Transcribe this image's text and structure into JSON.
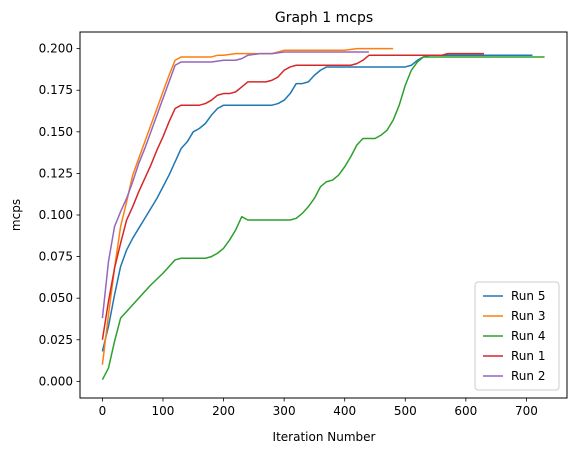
{
  "chart_data": {
    "type": "line",
    "title": "Graph 1 mcps",
    "xlabel": "Iteration Number",
    "ylabel": "mcps",
    "xlim": [
      -37,
      767
    ],
    "ylim": [
      -0.01,
      0.21
    ],
    "xticks": [
      0,
      100,
      200,
      300,
      400,
      500,
      600,
      700
    ],
    "yticks": [
      0.0,
      0.025,
      0.05,
      0.075,
      0.1,
      0.125,
      0.15,
      0.175,
      0.2
    ],
    "ytick_labels": [
      "0.000",
      "0.025",
      "0.050",
      "0.075",
      "0.100",
      "0.125",
      "0.150",
      "0.175",
      "0.200"
    ],
    "grid": false,
    "legend_position": "lower-right",
    "series": [
      {
        "name": "Run 5",
        "color": "#1f77b4",
        "x": [
          0,
          10,
          20,
          30,
          40,
          50,
          60,
          70,
          80,
          90,
          100,
          110,
          120,
          130,
          140,
          150,
          160,
          170,
          180,
          190,
          200,
          210,
          220,
          230,
          240,
          250,
          260,
          270,
          280,
          290,
          300,
          310,
          320,
          330,
          340,
          350,
          360,
          370,
          380,
          390,
          400,
          410,
          420,
          430,
          440,
          450,
          460,
          470,
          480,
          490,
          500,
          510,
          520,
          530,
          540,
          560,
          600,
          650,
          710
        ],
        "y": [
          0.018,
          0.033,
          0.052,
          0.069,
          0.079,
          0.086,
          0.092,
          0.098,
          0.104,
          0.11,
          0.117,
          0.124,
          0.132,
          0.14,
          0.144,
          0.15,
          0.152,
          0.155,
          0.16,
          0.164,
          0.166,
          0.166,
          0.166,
          0.166,
          0.166,
          0.166,
          0.166,
          0.166,
          0.166,
          0.167,
          0.169,
          0.173,
          0.179,
          0.179,
          0.18,
          0.184,
          0.187,
          0.189,
          0.189,
          0.189,
          0.189,
          0.189,
          0.189,
          0.189,
          0.189,
          0.189,
          0.189,
          0.189,
          0.189,
          0.189,
          0.189,
          0.19,
          0.193,
          0.195,
          0.196,
          0.196,
          0.196,
          0.196,
          0.196
        ]
      },
      {
        "name": "Run 3",
        "color": "#ff7f0e",
        "x": [
          0,
          10,
          20,
          30,
          40,
          50,
          60,
          70,
          80,
          90,
          100,
          110,
          120,
          130,
          140,
          150,
          160,
          170,
          180,
          190,
          200,
          220,
          240,
          260,
          280,
          300,
          320,
          340,
          360,
          380,
          400,
          420,
          440,
          460,
          480
        ],
        "y": [
          0.01,
          0.04,
          0.068,
          0.093,
          0.108,
          0.124,
          0.134,
          0.144,
          0.154,
          0.164,
          0.174,
          0.184,
          0.193,
          0.195,
          0.195,
          0.195,
          0.195,
          0.195,
          0.195,
          0.196,
          0.196,
          0.197,
          0.197,
          0.197,
          0.197,
          0.199,
          0.199,
          0.199,
          0.199,
          0.199,
          0.199,
          0.2,
          0.2,
          0.2,
          0.2
        ]
      },
      {
        "name": "Run 4",
        "color": "#2ca02c",
        "x": [
          0,
          10,
          20,
          30,
          40,
          60,
          80,
          100,
          120,
          130,
          140,
          150,
          160,
          170,
          180,
          190,
          200,
          210,
          220,
          230,
          240,
          250,
          260,
          270,
          280,
          290,
          300,
          310,
          320,
          330,
          340,
          350,
          360,
          370,
          380,
          390,
          400,
          410,
          420,
          430,
          440,
          450,
          460,
          470,
          480,
          490,
          500,
          510,
          520,
          530,
          540,
          560,
          600,
          650,
          700,
          730
        ],
        "y": [
          0.001,
          0.008,
          0.024,
          0.038,
          0.042,
          0.05,
          0.058,
          0.065,
          0.073,
          0.074,
          0.074,
          0.074,
          0.074,
          0.074,
          0.075,
          0.077,
          0.08,
          0.085,
          0.091,
          0.099,
          0.097,
          0.097,
          0.097,
          0.097,
          0.097,
          0.097,
          0.097,
          0.097,
          0.098,
          0.101,
          0.105,
          0.11,
          0.117,
          0.12,
          0.121,
          0.124,
          0.129,
          0.135,
          0.142,
          0.146,
          0.146,
          0.146,
          0.148,
          0.151,
          0.157,
          0.166,
          0.178,
          0.187,
          0.192,
          0.195,
          0.195,
          0.195,
          0.195,
          0.195,
          0.195,
          0.195
        ]
      },
      {
        "name": "Run 1",
        "color": "#d62728",
        "x": [
          0,
          10,
          20,
          30,
          40,
          50,
          60,
          70,
          80,
          90,
          100,
          110,
          120,
          130,
          140,
          150,
          160,
          170,
          180,
          190,
          200,
          210,
          220,
          230,
          240,
          250,
          260,
          270,
          280,
          290,
          300,
          310,
          320,
          330,
          340,
          350,
          360,
          370,
          380,
          390,
          400,
          410,
          420,
          430,
          440,
          460,
          480,
          500,
          520,
          540,
          560,
          570,
          580,
          600,
          630
        ],
        "y": [
          0.025,
          0.048,
          0.068,
          0.083,
          0.097,
          0.105,
          0.114,
          0.122,
          0.13,
          0.139,
          0.147,
          0.156,
          0.164,
          0.166,
          0.166,
          0.166,
          0.166,
          0.167,
          0.169,
          0.172,
          0.173,
          0.173,
          0.174,
          0.177,
          0.18,
          0.18,
          0.18,
          0.18,
          0.181,
          0.183,
          0.187,
          0.189,
          0.19,
          0.19,
          0.19,
          0.19,
          0.19,
          0.19,
          0.19,
          0.19,
          0.19,
          0.19,
          0.191,
          0.193,
          0.196,
          0.196,
          0.196,
          0.196,
          0.196,
          0.196,
          0.196,
          0.197,
          0.197,
          0.197,
          0.197
        ]
      },
      {
        "name": "Run 2",
        "color": "#9467bd",
        "x": [
          0,
          10,
          20,
          30,
          40,
          50,
          60,
          70,
          80,
          90,
          100,
          110,
          120,
          130,
          140,
          160,
          180,
          200,
          220,
          230,
          240,
          260,
          280,
          300,
          320,
          340,
          360,
          380,
          400,
          420,
          440
        ],
        "y": [
          0.038,
          0.072,
          0.093,
          0.102,
          0.11,
          0.12,
          0.131,
          0.14,
          0.15,
          0.16,
          0.17,
          0.18,
          0.19,
          0.192,
          0.192,
          0.192,
          0.192,
          0.193,
          0.193,
          0.194,
          0.196,
          0.197,
          0.197,
          0.198,
          0.198,
          0.198,
          0.198,
          0.198,
          0.198,
          0.198,
          0.198
        ]
      }
    ]
  }
}
